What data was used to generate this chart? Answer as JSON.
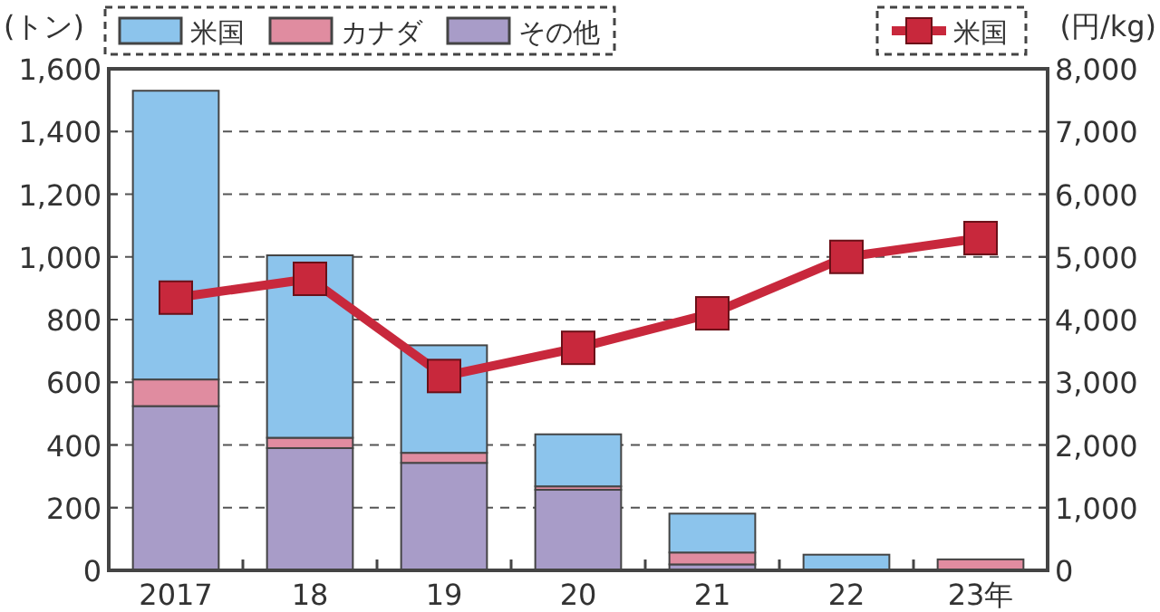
{
  "chart_data": {
    "type": "bar",
    "stacked": true,
    "ylabel": "(トン)",
    "y2label": "(円/kg)",
    "categories": [
      "2017",
      "18",
      "19",
      "20",
      "21",
      "22",
      "23年"
    ],
    "series": [
      {
        "name": "その他",
        "color": "#a89cc8",
        "values": [
          524,
          390,
          343,
          257,
          19,
          null,
          null
        ]
      },
      {
        "name": "カナダ",
        "color": "#e08ca0",
        "values": [
          85,
          33,
          32,
          11,
          38,
          null,
          35
        ]
      },
      {
        "name": "米国",
        "color": "#8cc4ec",
        "values": [
          921,
          582,
          343,
          166,
          124,
          50,
          0
        ]
      },
      {
        "name": "米国",
        "type": "line",
        "axis": "y2",
        "color": "#c8283c",
        "marker": "square",
        "values": [
          4350,
          4650,
          3100,
          3550,
          4100,
          5000,
          5300
        ]
      }
    ],
    "ylim": [
      0,
      1600
    ],
    "yticks": [
      0,
      200,
      400,
      600,
      800,
      {
        "value": 1000,
        "label": "1,000"
      },
      {
        "value": 1200,
        "label": "1,200"
      },
      {
        "value": 1400,
        "label": "1,400"
      },
      {
        "value": 1600,
        "label": "1,600"
      }
    ],
    "y2lim": [
      0,
      8000
    ],
    "y2ticks": [
      0,
      {
        "value": 1000,
        "label": "1,000"
      },
      {
        "value": 2000,
        "label": "2,000"
      },
      {
        "value": 3000,
        "label": "3,000"
      },
      {
        "value": 4000,
        "label": "4,000"
      },
      {
        "value": 5000,
        "label": "5,000"
      },
      {
        "value": 6000,
        "label": "6,000"
      },
      {
        "value": 7000,
        "label": "7,000"
      },
      {
        "value": 8000,
        "label": "8,000"
      }
    ],
    "grid": "y",
    "legend": "top"
  }
}
